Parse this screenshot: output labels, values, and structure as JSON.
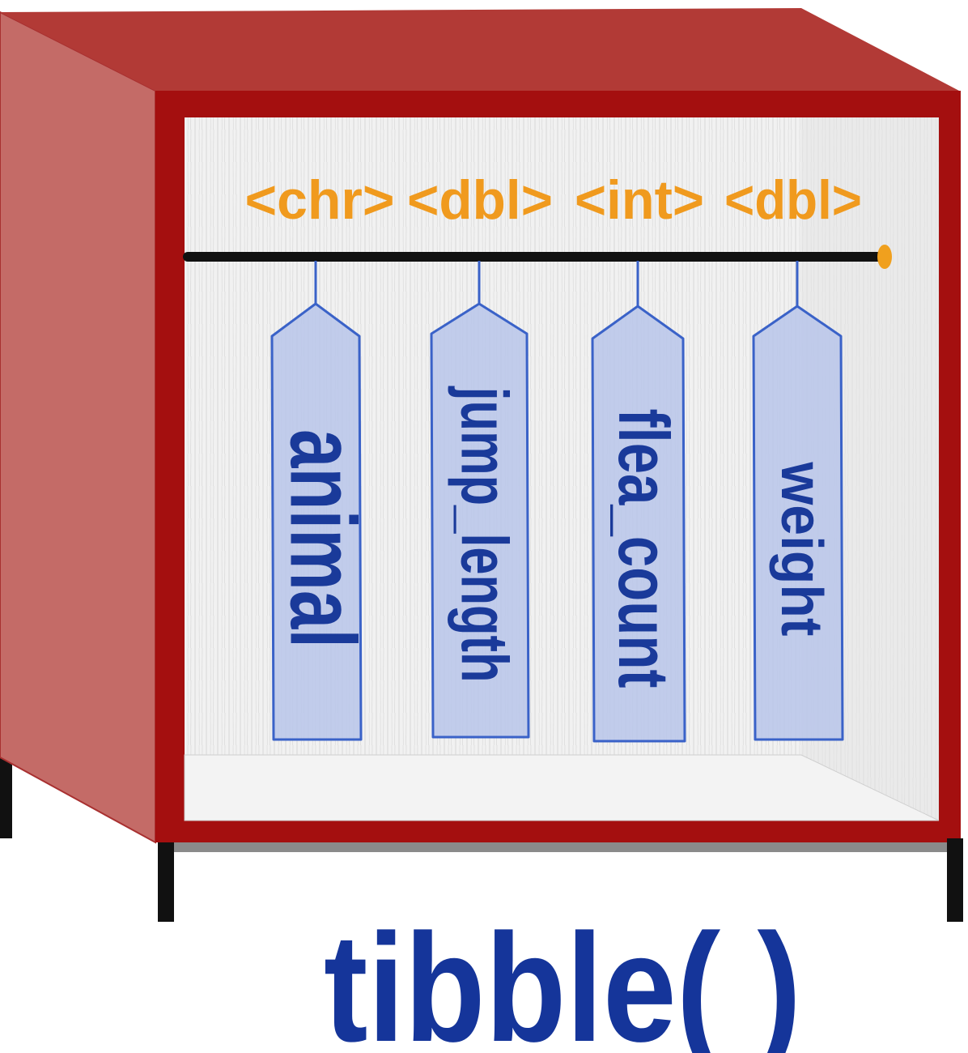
{
  "column_types": [
    "<chr>",
    "<dbl>",
    "<int>",
    "<dbl>"
  ],
  "columns": [
    "animal",
    "jump_length",
    "flea_count",
    "weight"
  ],
  "caption": "tibble( )",
  "colors": {
    "cabinet_front": "#a40f0f",
    "cabinet_side": "#c46b67",
    "cabinet_top": "#b23a36",
    "type_text": "#f09a1e",
    "tag_fill": "#b8c6ea",
    "tag_stroke": "#3a62c8",
    "tag_text": "#1a3a9a",
    "caption_text": "#15359a",
    "rod": "#111111",
    "rod_end": "#f0a01e"
  },
  "icons": {
    "cabinet": "wardrobe-cabinet-icon",
    "rod": "hanging-rod-icon",
    "tag": "hanging-tag-icon"
  }
}
